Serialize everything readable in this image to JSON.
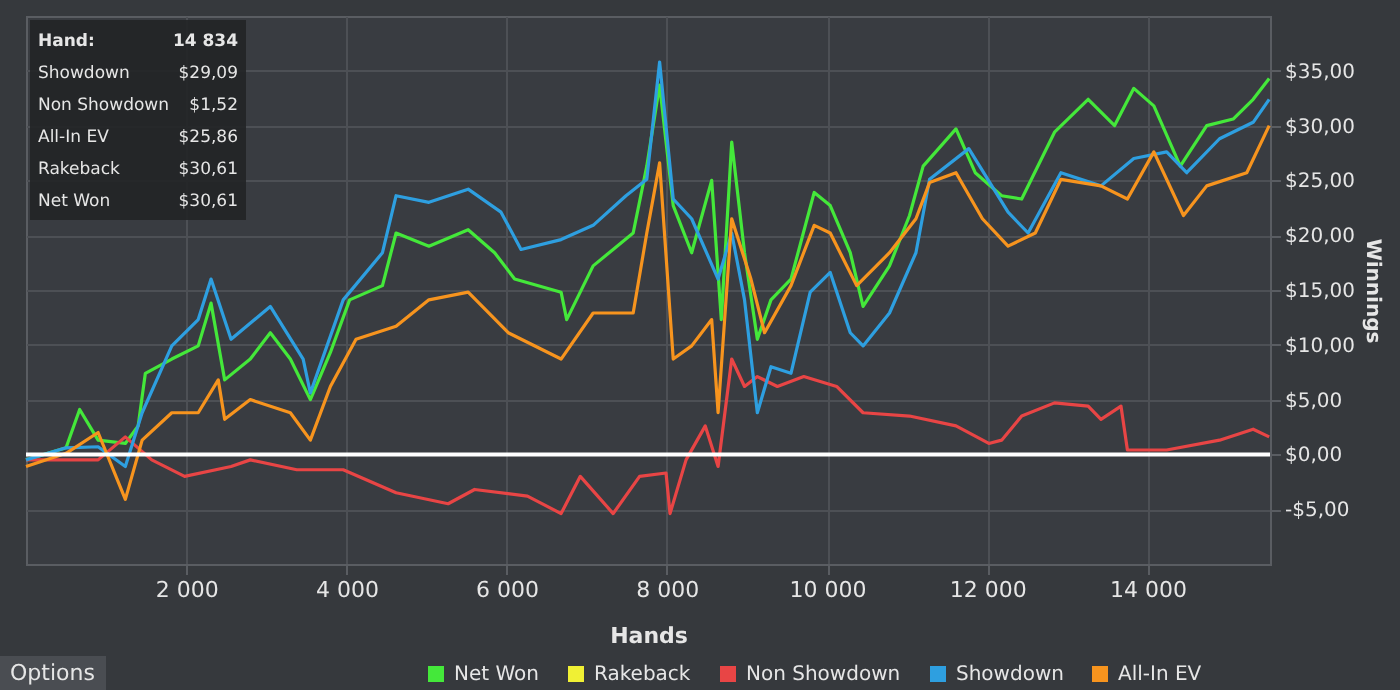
{
  "chart_data": {
    "type": "line",
    "xlabel": "Hands",
    "ylabel": "Winnings",
    "xlim": [
      0,
      15530
    ],
    "ylim": [
      -10,
      40
    ],
    "xticks": [
      {
        "value": 2000,
        "label": "2 000"
      },
      {
        "value": 4000,
        "label": "4 000"
      },
      {
        "value": 6000,
        "label": "6 000"
      },
      {
        "value": 8000,
        "label": "8 000"
      },
      {
        "value": 10000,
        "label": "10 000"
      },
      {
        "value": 12000,
        "label": "12 000"
      },
      {
        "value": 14000,
        "label": "14 000"
      }
    ],
    "yticks": [
      {
        "value": -5,
        "label": "-$5,00"
      },
      {
        "value": 0,
        "label": "$0,00"
      },
      {
        "value": 5,
        "label": "$5,00"
      },
      {
        "value": 10,
        "label": "$10,00"
      },
      {
        "value": 15,
        "label": "$15,00"
      },
      {
        "value": 20,
        "label": "$20,00"
      },
      {
        "value": 25,
        "label": "$25,00"
      },
      {
        "value": 30,
        "label": "$30,00"
      },
      {
        "value": 35,
        "label": "$35,00"
      }
    ],
    "grid": true,
    "legend": "bottom",
    "line_style": "solid",
    "marker": "none",
    "ref_lines": [
      {
        "axis": "y",
        "value": 0,
        "color": "#ffffff"
      }
    ],
    "annotations": [
      "Hand:",
      "14 834",
      "Showdown",
      "$29,09",
      "Non Showdown",
      "$1,52",
      "All-In EV",
      "$25,86",
      "Rakeback",
      "$30,61",
      "Net Won",
      "$30,61",
      "Options"
    ],
    "series": [
      {
        "name": "Net Won",
        "color": "#44e83a",
        "x": [
          0,
          500,
          670,
          900,
          1240,
          1400,
          1490,
          1820,
          2150,
          2310,
          2480,
          2800,
          3050,
          3300,
          3550,
          3800,
          4040,
          4450,
          4620,
          5030,
          5520,
          5850,
          6100,
          6680,
          6750,
          7080,
          7580,
          7750,
          7910,
          8080,
          8310,
          8560,
          8680,
          8810,
          8970,
          9130,
          9300,
          9550,
          9840,
          10040,
          10290,
          10450,
          10780,
          11030,
          11200,
          11610,
          11850,
          12180,
          12430,
          12840,
          13260,
          13590,
          13830,
          14080,
          14410,
          14740,
          15070,
          15320,
          15520
        ],
        "values": [
          -0.5,
          0.6,
          4.1,
          1.3,
          1,
          2.6,
          7.4,
          8.7,
          9.9,
          13.8,
          6.8,
          8.7,
          11.1,
          8.7,
          5,
          9.3,
          14.1,
          15.4,
          20.2,
          19,
          20.5,
          18.4,
          16,
          14.8,
          12.3,
          17.2,
          20.2,
          26.3,
          33.7,
          22.7,
          18.4,
          25,
          12.3,
          28.5,
          18.4,
          10.5,
          14.1,
          16,
          23.9,
          22.7,
          18.4,
          13.5,
          17.2,
          21.8,
          26.3,
          29.7,
          25.7,
          23.6,
          23.3,
          29.4,
          32.4,
          30,
          33.4,
          31.8,
          26.3,
          30,
          30.6,
          32.4,
          34.3
        ]
      },
      {
        "name": "Rakeback",
        "color": "#f0f034"
      },
      {
        "name": "Non Showdown",
        "color": "#e84545",
        "x": [
          0,
          500,
          900,
          1240,
          1570,
          1980,
          2560,
          2800,
          3380,
          3960,
          4620,
          5270,
          5600,
          6260,
          6680,
          6920,
          7330,
          7660,
          7990,
          8040,
          8240,
          8480,
          8640,
          8810,
          8970,
          9130,
          9380,
          9710,
          10120,
          10450,
          11030,
          11610,
          12020,
          12180,
          12430,
          12840,
          13260,
          13420,
          13670,
          13750,
          14240,
          14900,
          15320,
          15520
        ],
        "values": [
          -0.5,
          -0.5,
          -0.5,
          1.6,
          -0.5,
          -2,
          -1.1,
          -0.5,
          -1.4,
          -1.4,
          -3.5,
          -4.5,
          -3.2,
          -3.8,
          -5.4,
          -2,
          -5.4,
          -2,
          -1.7,
          -5.4,
          -0.5,
          2.6,
          -1.1,
          8.7,
          6.2,
          7.1,
          6.2,
          7.1,
          6.2,
          3.8,
          3.5,
          2.6,
          1,
          1.3,
          3.5,
          4.7,
          4.4,
          3.2,
          4.4,
          0.4,
          0.4,
          1.3,
          2.3,
          1.6
        ]
      },
      {
        "name": "Showdown",
        "color": "#2e9fe0",
        "x": [
          0,
          500,
          900,
          1240,
          1450,
          1820,
          2150,
          2310,
          2560,
          3050,
          3460,
          3550,
          3960,
          4450,
          4620,
          5030,
          5520,
          5930,
          6180,
          6680,
          7080,
          7490,
          7750,
          7910,
          8080,
          8310,
          8640,
          8810,
          8970,
          9130,
          9300,
          9550,
          9790,
          10040,
          10290,
          10450,
          10780,
          11110,
          11280,
          11770,
          12260,
          12510,
          12920,
          13420,
          13830,
          14240,
          14490,
          14900,
          15320,
          15520
        ],
        "values": [
          -0.5,
          0.6,
          0.7,
          -1.1,
          3.8,
          9.9,
          12.3,
          16,
          10.5,
          13.5,
          8.7,
          5.6,
          14.1,
          18.4,
          23.6,
          23,
          24.2,
          22.1,
          18.7,
          19.6,
          20.9,
          23.6,
          25.1,
          35.8,
          23.3,
          21.5,
          16,
          20.2,
          14.1,
          3.8,
          8,
          7.4,
          14.8,
          16.6,
          11.1,
          9.9,
          12.9,
          18.4,
          25.1,
          27.9,
          22.1,
          20.2,
          25.7,
          24.5,
          27,
          27.6,
          25.7,
          28.8,
          30.3,
          32.4
        ]
      },
      {
        "name": "All-In EV",
        "color": "#f7941e",
        "x": [
          0,
          500,
          900,
          1240,
          1450,
          1820,
          2150,
          2400,
          2480,
          2800,
          3300,
          3550,
          3800,
          4120,
          4620,
          5030,
          5520,
          6020,
          6680,
          7080,
          7580,
          7750,
          7910,
          8080,
          8310,
          8560,
          8640,
          8810,
          9050,
          9220,
          9550,
          9840,
          10040,
          10370,
          10780,
          11110,
          11280,
          11610,
          11940,
          12260,
          12600,
          12920,
          13420,
          13750,
          14080,
          14450,
          14740,
          15240,
          15520
        ],
        "values": [
          -1.1,
          0.1,
          2,
          -4.1,
          1.3,
          3.8,
          3.8,
          6.8,
          3.2,
          5,
          3.8,
          1.3,
          6.2,
          10.5,
          11.7,
          14.1,
          14.8,
          11.1,
          8.7,
          12.9,
          12.9,
          20.2,
          26.6,
          8.7,
          9.9,
          12.3,
          3.8,
          21.5,
          16,
          11.1,
          15.4,
          20.9,
          20.2,
          15.4,
          18.4,
          21.5,
          24.8,
          25.7,
          21.5,
          19,
          20.2,
          25.1,
          24.5,
          23.3,
          27.6,
          21.8,
          24.5,
          25.7,
          30
        ]
      }
    ]
  }
}
